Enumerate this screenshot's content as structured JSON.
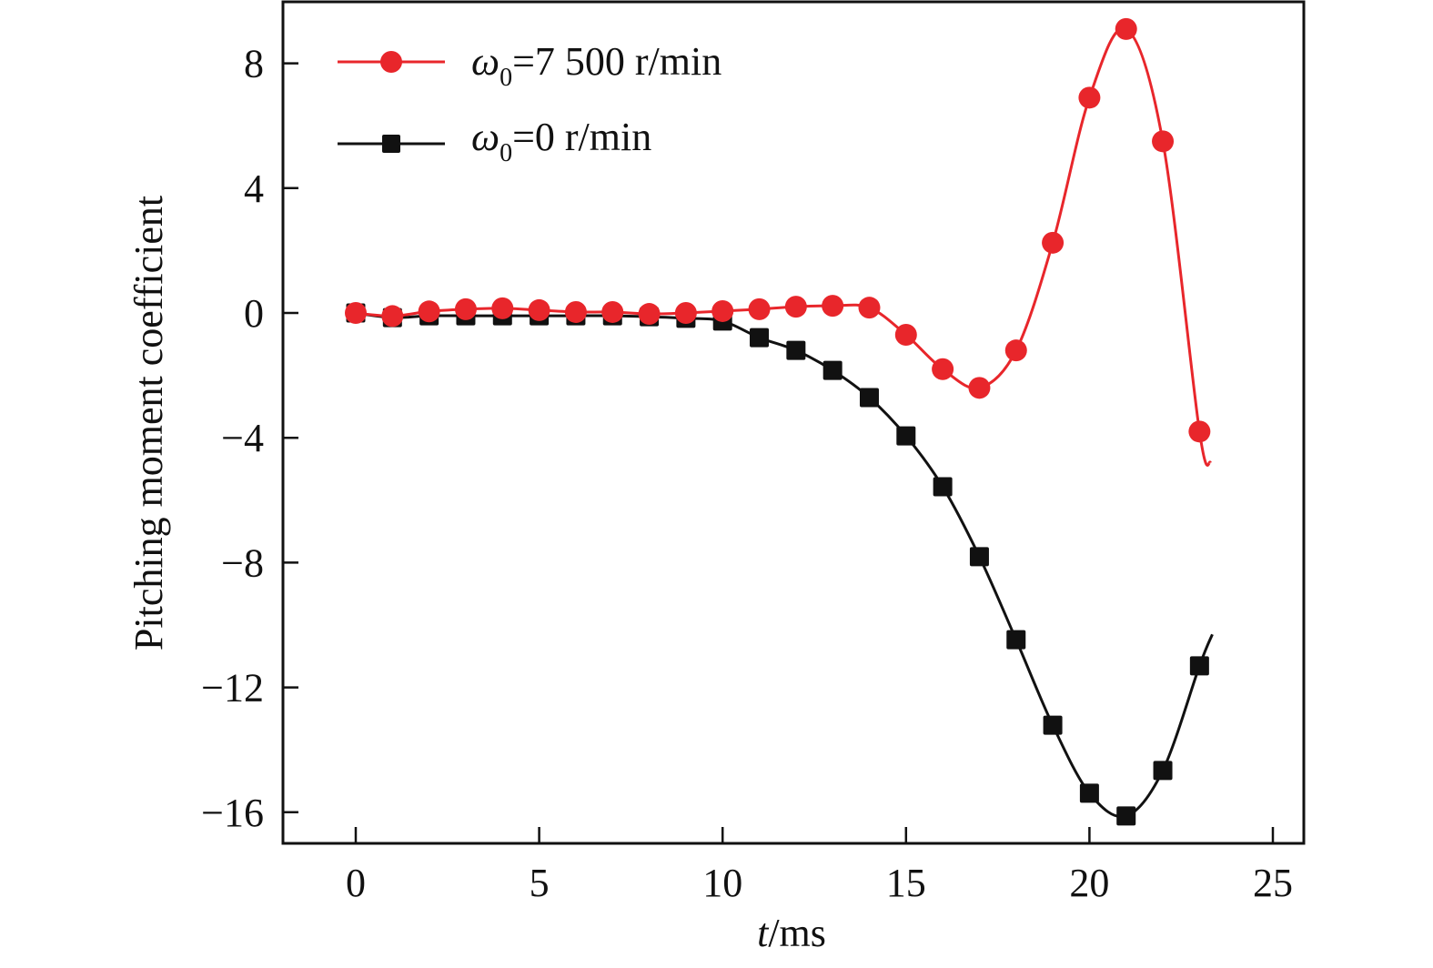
{
  "chart_data": {
    "type": "line",
    "title": "",
    "xlabel_italic": "t",
    "xlabel_rest": "/ms",
    "xlabel": "t/ms",
    "ylabel": "Pitching moment coefficient",
    "xlim": [
      -2,
      26
    ],
    "ylim": [
      -16.8,
      10
    ],
    "xticks": [
      0,
      5,
      10,
      15,
      20,
      25
    ],
    "xtick_labels": [
      "0",
      "5",
      "10",
      "15",
      "20",
      "25"
    ],
    "yticks": [
      8,
      4,
      0,
      -4,
      -8,
      -12,
      -16
    ],
    "ytick_labels": [
      "8",
      "4",
      "0",
      "−4",
      "−8",
      "−12",
      "−16"
    ],
    "grid": false,
    "legend_position": "top-left",
    "series": [
      {
        "name": "ω0=7 500 r/min",
        "legend_symbol": "ω",
        "legend_subscript": "0",
        "legend_rest": "=7 500 r/min",
        "color": "#e8262b",
        "marker": "circle",
        "x": [
          0,
          1,
          2,
          3,
          4,
          5,
          6,
          7,
          8,
          9,
          10,
          11,
          12,
          13,
          14,
          15,
          16,
          17,
          18,
          19,
          20,
          21,
          22,
          23
        ],
        "values": [
          0.0,
          -0.1,
          0.05,
          0.12,
          0.15,
          0.09,
          0.03,
          0.03,
          -0.03,
          0.0,
          0.06,
          0.12,
          0.2,
          0.23,
          0.17,
          -0.7,
          -1.8,
          -2.4,
          -1.2,
          2.25,
          6.9,
          9.1,
          5.5,
          -3.8
        ],
        "line_end": {
          "x": 23.3,
          "y": -4.8
        }
      },
      {
        "name": "ω0=0 r/min",
        "legend_symbol": "ω",
        "legend_subscript": "0",
        "legend_rest": "=0 r/min",
        "color": "#111111",
        "marker": "square",
        "x": [
          0,
          1,
          2,
          3,
          4,
          5,
          6,
          7,
          8,
          9,
          10,
          11,
          12,
          13,
          14,
          15,
          16,
          17,
          18,
          19,
          20,
          21,
          22,
          23
        ],
        "values": [
          0.0,
          -0.15,
          -0.09,
          -0.09,
          -0.09,
          -0.09,
          -0.09,
          -0.09,
          -0.12,
          -0.17,
          -0.26,
          -0.79,
          -1.2,
          -1.84,
          -2.71,
          -3.94,
          -5.57,
          -7.81,
          -10.47,
          -13.21,
          -15.39,
          -16.12,
          -14.66,
          -11.31
        ],
        "line_end": {
          "x": 23.35,
          "y": -10.3
        }
      }
    ]
  }
}
